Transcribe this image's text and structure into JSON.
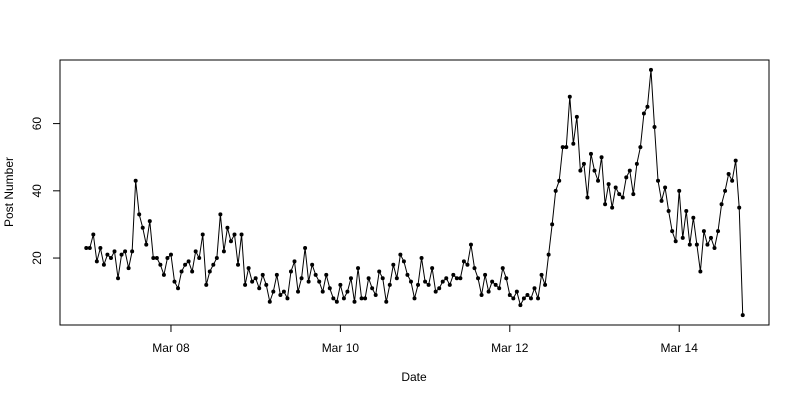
{
  "chart_data": {
    "type": "line",
    "x_label": "Date",
    "y_label": "Post Number",
    "color": "#000000",
    "values": [
      23,
      23,
      27,
      19,
      23,
      18,
      21,
      20,
      22,
      14,
      21,
      22,
      17,
      22,
      43,
      33,
      29,
      24,
      31,
      20,
      20,
      18,
      15,
      20,
      21,
      13,
      11,
      16,
      18,
      19,
      16,
      22,
      20,
      27,
      12,
      16,
      18,
      20,
      33,
      22,
      29,
      25,
      27,
      18,
      27,
      12,
      17,
      13,
      14,
      11,
      15,
      12,
      7,
      10,
      15,
      9,
      10,
      8,
      16,
      19,
      10,
      14,
      23,
      13,
      18,
      15,
      13,
      10,
      15,
      11,
      8,
      7,
      12,
      8,
      10,
      14,
      7,
      17,
      8,
      8,
      14,
      11,
      9,
      16,
      14,
      7,
      12,
      18,
      14,
      21,
      19,
      15,
      13,
      8,
      12,
      20,
      13,
      12,
      17,
      10,
      11,
      13,
      14,
      12,
      15,
      14,
      14,
      19,
      18,
      24,
      17,
      14,
      9,
      15,
      10,
      13,
      12,
      11,
      17,
      14,
      9,
      8,
      10,
      6,
      8,
      9,
      8,
      11,
      8,
      15,
      12,
      21,
      30,
      40,
      43,
      53,
      53,
      68,
      54,
      62,
      46,
      48,
      38,
      51,
      46,
      43,
      50,
      36,
      42,
      35,
      41,
      39,
      38,
      44,
      46,
      39,
      48,
      53,
      63,
      65,
      76,
      59,
      43,
      37,
      41,
      34,
      28,
      25,
      40,
      26,
      34,
      24,
      32,
      24,
      16,
      28,
      24,
      26,
      23,
      28,
      36,
      40,
      45,
      43,
      49,
      35,
      3
    ],
    "xlim": [
      -7.44,
      193.44
    ],
    "xticks": [
      {
        "value": 24,
        "label": "Mar 08"
      },
      {
        "value": 72,
        "label": "Mar 10"
      },
      {
        "value": 120,
        "label": "Mar 12"
      },
      {
        "value": 168,
        "label": "Mar 14"
      }
    ],
    "ylim": [
      0.08,
      78.92
    ],
    "yticks": [
      20,
      40,
      60
    ]
  }
}
